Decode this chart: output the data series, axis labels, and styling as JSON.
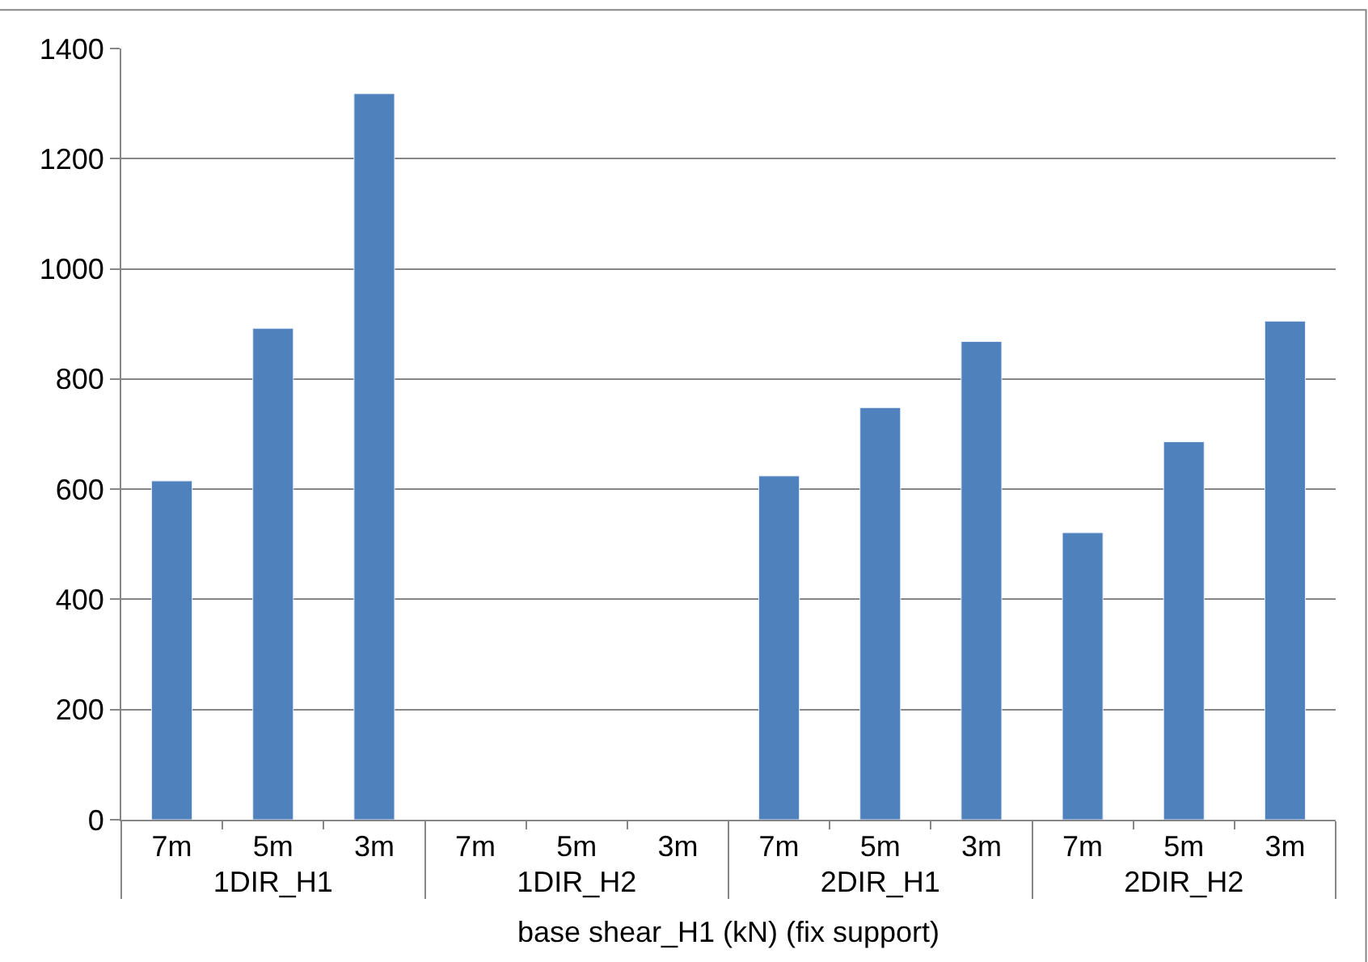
{
  "chart_data": {
    "type": "bar",
    "categories": [
      "7m",
      "5m",
      "3m",
      "7m",
      "5m",
      "3m",
      "7m",
      "5m",
      "3m",
      "7m",
      "5m",
      "3m"
    ],
    "annotations": [
      "1DIR_H1",
      "1DIR_H2",
      "2DIR_H1",
      "2DIR_H2"
    ],
    "xlabel": "base shear_H1 (kN) (fix support)",
    "series": [
      {
        "color": "#4f81bd",
        "values": [
          615,
          892,
          1318,
          null,
          null,
          null,
          624,
          748,
          868,
          521,
          686,
          905
        ]
      }
    ],
    "ylim": [
      0,
      1400
    ],
    "yticks": [
      0,
      200,
      400,
      600,
      800,
      1000,
      1200,
      1400
    ],
    "grid": "y"
  }
}
